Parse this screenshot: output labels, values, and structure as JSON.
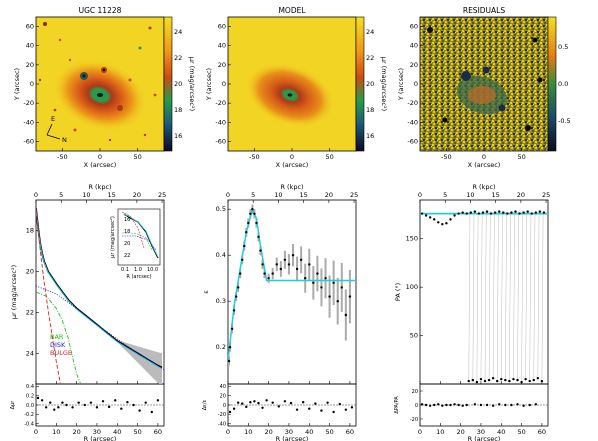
{
  "titles": {
    "left": "UGC 11228",
    "middle": "MODEL",
    "right": "RESIDUALS"
  },
  "image_axes": {
    "xlabel": "X (arcsec)",
    "ylabel": "Y (arcsec)",
    "xticks": [
      "-50",
      "0",
      "50"
    ],
    "yticks": [
      "60",
      "40",
      "20",
      "0",
      "-20",
      "-40",
      "-60"
    ],
    "compass_east": "E",
    "compass_north": "N"
  },
  "colorbars": {
    "surface_label": "μr (mag/arcsec²)",
    "surface_ticks": [
      "24",
      "22",
      "20",
      "18",
      "16"
    ],
    "residual_ticks": [
      "0.5",
      "0.0",
      "-0.5"
    ]
  },
  "profiles": {
    "top_axis_label": "R (kpc)",
    "top_ticks": [
      "0",
      "5",
      "10",
      "15",
      "20",
      "25"
    ],
    "bottom_axis_label": "R (arcsec)",
    "bottom_ticks": [
      "0",
      "10",
      "20",
      "30",
      "40",
      "50",
      "60"
    ],
    "sb_ylabel": "μr (mag/arcsec²)",
    "sb_yticks": [
      "18",
      "20",
      "22",
      "24"
    ],
    "sb_resid_ylabel": "Δμr",
    "sb_resid_ticks": [
      "0.4",
      "0.2",
      "0.0",
      "-0.2",
      "-0.4"
    ],
    "ell_ylabel": "ε",
    "ell_yticks": [
      "0.2",
      "0.3",
      "0.4",
      "0.5"
    ],
    "ell_resid_ylabel": "Δε/ε",
    "ell_resid_ticks": [
      "40",
      "20",
      "0",
      "-20",
      "-40"
    ],
    "pa_ylabel": "PA (°)",
    "pa_yticks": [
      "50",
      "100",
      "150"
    ],
    "pa_resid_ylabel": "ΔPA/PA",
    "pa_resid_ticks": [
      "20",
      "0",
      "-20"
    ],
    "legend": [
      "BAR",
      "DISK",
      "BULGE"
    ],
    "inset_xlabel": "R (arcsec)",
    "inset_ylabel": "μr (mag/arcsec²)",
    "inset_xticks": [
      "0.1",
      "1.0",
      "10.0"
    ],
    "inset_yticks": [
      "16",
      "18",
      "20",
      "22"
    ]
  },
  "colors": {
    "bar": "#22bb22",
    "disk": "#2222cc",
    "bulge": "#dd2222",
    "fit": "#22ccdd"
  },
  "chart_data": [
    {
      "type": "line",
      "title": "",
      "xlabel": "R (arcsec)",
      "ylabel": "μr (mag/arcsec²)",
      "xlim": [
        0,
        63
      ],
      "ylim": [
        25.5,
        16.5
      ],
      "series": [
        {
          "name": "",
          "x": [
            0,
            1,
            2,
            3,
            4,
            6,
            8,
            10,
            13,
            16,
            20,
            25,
            30,
            35,
            40,
            45,
            50,
            55,
            60,
            62
          ],
          "y": [
            16.9,
            17.8,
            18.6,
            19.1,
            19.5,
            20.0,
            20.3,
            20.6,
            21.0,
            21.4,
            21.8,
            22.2,
            22.6,
            23.0,
            23.4,
            23.7,
            24.0,
            24.3,
            24.6,
            24.7
          ]
        },
        {
          "name": "BAR",
          "x": [
            0,
            5,
            10,
            13,
            16,
            18,
            20,
            22
          ],
          "y": [
            21.0,
            21.2,
            21.8,
            22.4,
            23.3,
            24.2,
            25.0,
            25.5
          ]
        },
        {
          "name": "DISK",
          "x": [
            0,
            10,
            20,
            30,
            40,
            50,
            60,
            63
          ],
          "y": [
            20.7,
            21.1,
            21.8,
            22.6,
            23.3,
            24.0,
            24.6,
            24.8
          ]
        },
        {
          "name": "BULGE",
          "x": [
            0,
            1,
            2,
            4,
            6,
            8,
            10,
            12
          ],
          "y": [
            17.0,
            17.9,
            18.9,
            20.5,
            21.9,
            23.2,
            24.4,
            25.5
          ]
        }
      ]
    },
    {
      "type": "scatter",
      "xlabel": "R (arcsec)",
      "ylabel": "Δμr",
      "xlim": [
        0,
        63
      ],
      "ylim": [
        -0.45,
        0.45
      ],
      "series": [
        {
          "name": "",
          "x": [
            1,
            3,
            5,
            7,
            9,
            11,
            13,
            15,
            18,
            21,
            24,
            27,
            30,
            33,
            36,
            39,
            42,
            45,
            48,
            51,
            54,
            57,
            60
          ],
          "y": [
            0.15,
            0.1,
            -0.05,
            0.05,
            -0.1,
            -0.05,
            0.05,
            0.0,
            -0.05,
            0.05,
            0.0,
            0.05,
            -0.05,
            0.08,
            -0.04,
            0.1,
            -0.08,
            0.06,
            0.0,
            -0.12,
            0.05,
            -0.15,
            0.1
          ]
        }
      ]
    },
    {
      "type": "line",
      "xlabel": "R (arcsec)",
      "ylabel": "ε",
      "xlim": [
        0,
        63
      ],
      "ylim": [
        0.12,
        0.52
      ],
      "series": [
        {
          "name": "",
          "x": [
            0.5,
            1,
            2,
            3,
            4,
            5,
            6,
            7,
            8,
            9,
            10,
            11,
            12,
            13,
            14,
            15,
            16,
            17,
            18,
            20,
            22,
            24,
            26,
            28,
            30,
            32,
            34,
            36,
            38,
            40,
            42,
            44,
            46,
            48,
            50,
            52,
            54,
            56,
            58,
            60
          ],
          "y": [
            0.17,
            0.2,
            0.24,
            0.28,
            0.31,
            0.33,
            0.36,
            0.39,
            0.42,
            0.45,
            0.47,
            0.49,
            0.5,
            0.49,
            0.47,
            0.44,
            0.41,
            0.38,
            0.36,
            0.35,
            0.36,
            0.38,
            0.37,
            0.39,
            0.38,
            0.4,
            0.37,
            0.39,
            0.35,
            0.38,
            0.34,
            0.36,
            0.33,
            0.35,
            0.31,
            0.34,
            0.3,
            0.33,
            0.27,
            0.31
          ]
        },
        {
          "name": "",
          "x": [
            0,
            3,
            6,
            9,
            12,
            14,
            16,
            18,
            19,
            63
          ],
          "y": [
            0.17,
            0.29,
            0.37,
            0.45,
            0.5,
            0.48,
            0.42,
            0.37,
            0.345,
            0.345
          ]
        }
      ]
    },
    {
      "type": "scatter",
      "xlabel": "R (arcsec)",
      "ylabel": "Δε/ε",
      "xlim": [
        0,
        63
      ],
      "ylim": [
        -45,
        45
      ],
      "series": [
        {
          "name": "",
          "x": [
            1,
            3,
            5,
            7,
            9,
            11,
            13,
            15,
            17,
            19,
            22,
            25,
            28,
            31,
            34,
            37,
            40,
            43,
            46,
            49,
            52,
            55,
            58,
            61
          ],
          "y": [
            -15,
            -8,
            5,
            3,
            -4,
            6,
            8,
            4,
            -6,
            10,
            5,
            -3,
            8,
            4,
            -10,
            6,
            -8,
            3,
            -12,
            5,
            -15,
            2,
            -10,
            -5
          ]
        }
      ]
    },
    {
      "type": "line",
      "xlabel": "R (arcsec)",
      "ylabel": "PA (°)",
      "xlim": [
        0,
        63
      ],
      "ylim": [
        0,
        190
      ],
      "series": [
        {
          "name": "",
          "x": [
            1,
            3,
            5,
            7,
            9,
            11,
            13,
            15,
            17,
            19,
            21,
            23,
            25,
            27,
            29,
            31,
            33,
            35,
            37,
            39,
            41,
            43,
            45,
            47,
            49,
            51,
            53,
            55,
            57,
            59,
            61
          ],
          "y": [
            176,
            174,
            172,
            170,
            167,
            165,
            166,
            170,
            174,
            176,
            177,
            176,
            177,
            178,
            176,
            177,
            178,
            176,
            177,
            178,
            177,
            176,
            177,
            178,
            176,
            177,
            178,
            176,
            177,
            178,
            177
          ]
        },
        {
          "name": "",
          "x": [
            24,
            26,
            28,
            30,
            32,
            34,
            36,
            38,
            40,
            42,
            44,
            46,
            48,
            50,
            52,
            54,
            56,
            58,
            60
          ],
          "y": [
            3,
            4,
            2,
            5,
            3,
            4,
            6,
            3,
            5,
            4,
            3,
            5,
            4,
            2,
            5,
            3,
            4,
            6,
            3
          ]
        },
        {
          "name": "",
          "x": [
            0,
            63
          ],
          "y": [
            176,
            176
          ]
        }
      ]
    },
    {
      "type": "scatter",
      "xlabel": "R (arcsec)",
      "ylabel": "ΔPA/PA",
      "xlim": [
        0,
        63
      ],
      "ylim": [
        -30,
        30
      ],
      "series": [
        {
          "name": "",
          "x": [
            1,
            3,
            5,
            7,
            9,
            11,
            13,
            15,
            17,
            19,
            21,
            23,
            27,
            30,
            33,
            36,
            39,
            42,
            45,
            48,
            51,
            54,
            57
          ],
          "y": [
            1,
            0,
            -1,
            0,
            1,
            -1,
            0,
            0,
            1,
            0,
            -1,
            0,
            1,
            0,
            0,
            -1,
            1,
            0,
            0,
            1,
            -1,
            0,
            1
          ]
        }
      ]
    }
  ]
}
